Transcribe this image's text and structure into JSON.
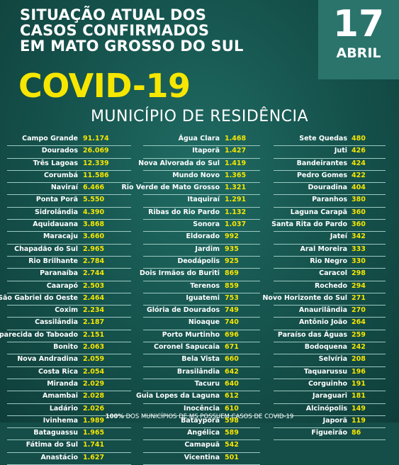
{
  "header": {
    "line1": "SITUAÇÃO ATUAL DOS",
    "line2": "CASOS CONFIRMADOS",
    "line3": "EM MATO GROSSO DO SUL",
    "covid": "COVID-19",
    "subtitle": "MUNICÍPIO DE RESIDÊNCIA"
  },
  "date": {
    "day": "17",
    "month": "ABRIL"
  },
  "columns": [
    [
      {
        "name": "Campo Grande",
        "value": "91.174"
      },
      {
        "name": "Dourados",
        "value": "26.069"
      },
      {
        "name": "Três Lagoas",
        "value": "12.339"
      },
      {
        "name": "Corumbá",
        "value": "11.586"
      },
      {
        "name": "Naviraí",
        "value": "6.466"
      },
      {
        "name": "Ponta Porã",
        "value": "5.550"
      },
      {
        "name": "Sidrolândia",
        "value": "4.390"
      },
      {
        "name": "Aquidauana",
        "value": "3.868"
      },
      {
        "name": "Maracaju",
        "value": "3.660"
      },
      {
        "name": "Chapadão do Sul",
        "value": "2.965"
      },
      {
        "name": "Rio Brilhante",
        "value": "2.784"
      },
      {
        "name": "Paranaíba",
        "value": "2.744"
      },
      {
        "name": "Caarapó",
        "value": "2.503"
      },
      {
        "name": "São Gabriel do Oeste",
        "value": "2.464"
      },
      {
        "name": "Coxim",
        "value": "2.234"
      },
      {
        "name": "Cassilândia",
        "value": "2.187"
      },
      {
        "name": "Aparecida do Taboado",
        "value": "2.151"
      },
      {
        "name": "Bonito",
        "value": "2.063"
      },
      {
        "name": "Nova Andradina",
        "value": "2.059"
      },
      {
        "name": "Costa Rica",
        "value": "2.054"
      },
      {
        "name": "Miranda",
        "value": "2.029"
      },
      {
        "name": "Amambai",
        "value": "2.028"
      },
      {
        "name": "Ladário",
        "value": "2.026"
      },
      {
        "name": "Ivinhema",
        "value": "1.989"
      },
      {
        "name": "Bataguassu",
        "value": "1.965"
      },
      {
        "name": "Fátima do Sul",
        "value": "1.741"
      },
      {
        "name": "Anastácio",
        "value": "1.627"
      }
    ],
    [
      {
        "name": "Água Clara",
        "value": "1.468"
      },
      {
        "name": "Itaporã",
        "value": "1.427"
      },
      {
        "name": "Nova Alvorada do Sul",
        "value": "1.419"
      },
      {
        "name": "Mundo Novo",
        "value": "1.365"
      },
      {
        "name": "Rio Verde de Mato Grosso",
        "value": "1.321"
      },
      {
        "name": "Itaquiraí",
        "value": "1.291"
      },
      {
        "name": "Ribas do Rio Pardo",
        "value": "1.132"
      },
      {
        "name": "Sonora",
        "value": "1.037"
      },
      {
        "name": "Eldorado",
        "value": "992"
      },
      {
        "name": "Jardim",
        "value": "935"
      },
      {
        "name": "Deodápolis",
        "value": "925"
      },
      {
        "name": "Dois Irmãos do Buriti",
        "value": "869"
      },
      {
        "name": "Terenos",
        "value": "859"
      },
      {
        "name": "Iguatemi",
        "value": "753"
      },
      {
        "name": "Glória de Dourados",
        "value": "749"
      },
      {
        "name": "Nioaque",
        "value": "740"
      },
      {
        "name": "Porto Murtinho",
        "value": "696"
      },
      {
        "name": "Coronel Sapucaia",
        "value": "671"
      },
      {
        "name": "Bela Vista",
        "value": "660"
      },
      {
        "name": "Brasilândia",
        "value": "642"
      },
      {
        "name": "Tacuru",
        "value": "640"
      },
      {
        "name": "Guia Lopes da Laguna",
        "value": "612"
      },
      {
        "name": "Inocência",
        "value": "610"
      },
      {
        "name": "Batayporã",
        "value": "598"
      },
      {
        "name": "Angélica",
        "value": "589"
      },
      {
        "name": "Camapuã",
        "value": "542"
      },
      {
        "name": "Vicentina",
        "value": "501"
      }
    ],
    [
      {
        "name": "Sete Quedas",
        "value": "480"
      },
      {
        "name": "Juti",
        "value": "426"
      },
      {
        "name": "Bandeirantes",
        "value": "424"
      },
      {
        "name": "Pedro Gomes",
        "value": "422"
      },
      {
        "name": "Douradina",
        "value": "404"
      },
      {
        "name": "Paranhos",
        "value": "380"
      },
      {
        "name": "Laguna Carapã",
        "value": "360"
      },
      {
        "name": "Santa Rita do Pardo",
        "value": "360"
      },
      {
        "name": "Jateí",
        "value": "342"
      },
      {
        "name": "Aral Moreira",
        "value": "333"
      },
      {
        "name": "Rio Negro",
        "value": "330"
      },
      {
        "name": "Caracol",
        "value": "298"
      },
      {
        "name": "Rochedo",
        "value": "294"
      },
      {
        "name": "Novo Horizonte do Sul",
        "value": "271"
      },
      {
        "name": "Anaurilândia",
        "value": "270"
      },
      {
        "name": "Antônio João",
        "value": "264"
      },
      {
        "name": "Paraíso das Águas",
        "value": "259"
      },
      {
        "name": "Bodoquena",
        "value": "242"
      },
      {
        "name": "Selvíria",
        "value": "208"
      },
      {
        "name": "Taquarussu",
        "value": "196"
      },
      {
        "name": "Corguinho",
        "value": "191"
      },
      {
        "name": "Jaraguari",
        "value": "181"
      },
      {
        "name": "Alcinópolis",
        "value": "149"
      },
      {
        "name": "Japorã",
        "value": "119"
      },
      {
        "name": "Figueirão",
        "value": "86"
      }
    ]
  ],
  "footer": {
    "bold": "100%",
    "text": " DOS MUNICÍPIOS DE MS POSSUEM CASOS DE COVID-19"
  },
  "colors": {
    "background": "#154d48",
    "accent": "#f6e600",
    "datebox": "#2a746c"
  }
}
